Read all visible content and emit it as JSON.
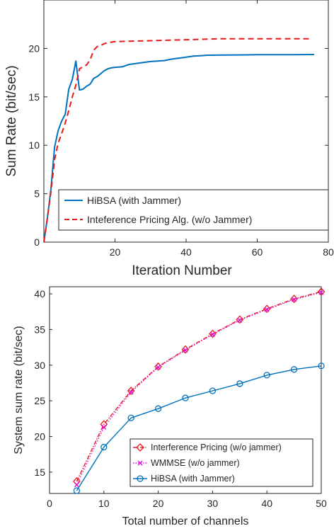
{
  "chart_data": [
    {
      "type": "line",
      "title": "",
      "xlabel": "Iteration Number",
      "ylabel": "Sum Rate (bit/sec)",
      "xlim": [
        0,
        80
      ],
      "ylim": [
        0,
        25
      ],
      "xticks": [
        20,
        40,
        60,
        80
      ],
      "yticks": [
        0,
        5,
        10,
        15,
        20
      ],
      "grid": false,
      "legend_position": "bottom-right",
      "series": [
        {
          "name": "HiBSA (with Jammer)",
          "color": "#0072bd",
          "style": "solid",
          "x": [
            0,
            1,
            2,
            3,
            4,
            5,
            6,
            7,
            8,
            9,
            10,
            11,
            12,
            13,
            14,
            15,
            16,
            17,
            18,
            19,
            20,
            22,
            24,
            26,
            28,
            30,
            32,
            34,
            36,
            38,
            40,
            42,
            44,
            46,
            50,
            55,
            60,
            65,
            70,
            76
          ],
          "y": [
            0,
            2.5,
            5.5,
            9.8,
            11.5,
            12.5,
            13.2,
            15.8,
            16.8,
            18.7,
            15.7,
            15.8,
            16.1,
            16.3,
            16.9,
            17.1,
            17.4,
            17.7,
            17.9,
            18.0,
            18.05,
            18.1,
            18.35,
            18.45,
            18.55,
            18.65,
            18.7,
            18.75,
            18.9,
            19.0,
            19.1,
            19.2,
            19.25,
            19.3,
            19.32,
            19.33,
            19.35,
            19.36,
            19.36,
            19.37
          ]
        },
        {
          "name": "Inteference Pricing Alg. (w/o Jammer)",
          "color": "#e8191a",
          "style": "dashed",
          "x": [
            0,
            1,
            2,
            3,
            4,
            5,
            6,
            7,
            8,
            9,
            10,
            11,
            12,
            13,
            14,
            15,
            16,
            17,
            18,
            19,
            20,
            25,
            30,
            35,
            40,
            45,
            50,
            55,
            60,
            65,
            70,
            75
          ],
          "y": [
            0,
            2.5,
            5.2,
            8.5,
            10.2,
            11.2,
            12.3,
            13.6,
            15.0,
            16.2,
            17.9,
            18.1,
            18.3,
            18.8,
            19.8,
            20.2,
            20.3,
            20.5,
            20.6,
            20.65,
            20.7,
            20.75,
            20.8,
            20.85,
            20.9,
            20.95,
            21.0,
            21.0,
            21.0,
            21.0,
            21.0,
            21.0
          ]
        }
      ]
    },
    {
      "type": "line",
      "title": "",
      "xlabel": "Total number of channels",
      "ylabel": "System sum rate (bit/sec)",
      "xlim": [
        0,
        50
      ],
      "ylim": [
        12,
        41
      ],
      "xticks": [
        0,
        10,
        20,
        30,
        40,
        50
      ],
      "yticks": [
        15,
        20,
        25,
        30,
        35,
        40
      ],
      "grid": false,
      "legend_position": "bottom-right",
      "series": [
        {
          "name": "Interference Pricing (w/o jammer)",
          "color": "#e8191a",
          "marker": "diamond",
          "style": "dash-dot",
          "x": [
            5,
            10,
            15,
            20,
            25,
            30,
            35,
            40,
            45,
            50
          ],
          "y": [
            13.7,
            21.7,
            26.4,
            29.8,
            32.2,
            34.4,
            36.4,
            37.9,
            39.3,
            40.3
          ]
        },
        {
          "name": "WMMSE (w/o jammer)",
          "color": "#e010e0",
          "marker": "x",
          "style": "dotted",
          "x": [
            5,
            10,
            15,
            20,
            25,
            30,
            35,
            40,
            45,
            50
          ],
          "y": [
            13.2,
            21.3,
            26.2,
            29.7,
            32.1,
            34.3,
            36.3,
            37.8,
            39.2,
            40.2
          ]
        },
        {
          "name": "HiBSA (with Jammer)",
          "color": "#0072bd",
          "marker": "circle",
          "style": "solid",
          "x": [
            5,
            10,
            15,
            20,
            25,
            30,
            35,
            40,
            45,
            50
          ],
          "y": [
            12.4,
            18.5,
            22.6,
            23.9,
            25.4,
            26.4,
            27.4,
            28.6,
            29.4,
            29.9
          ]
        }
      ]
    }
  ]
}
